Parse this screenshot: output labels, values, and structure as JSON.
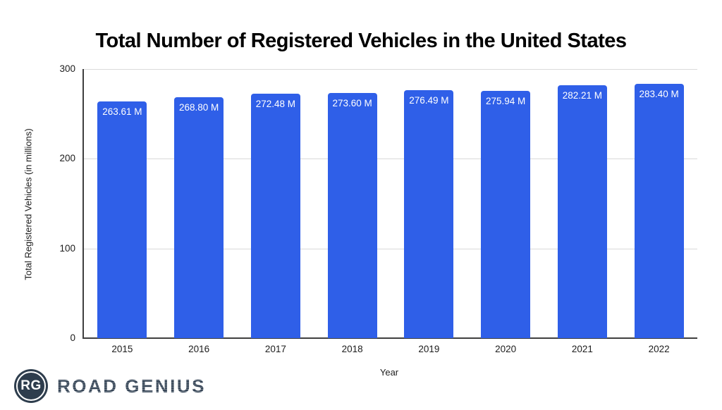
{
  "chart_data": {
    "type": "bar",
    "title": "Total Number of Registered Vehicles in the United States",
    "xlabel": "Year",
    "ylabel": "Total Registered Vehicles (in millions)",
    "categories": [
      "2015",
      "2016",
      "2017",
      "2018",
      "2019",
      "2020",
      "2021",
      "2022"
    ],
    "values": [
      263.61,
      268.8,
      272.48,
      273.6,
      276.49,
      275.94,
      282.21,
      283.4
    ],
    "value_labels": [
      "263.61 M",
      "268.80 M",
      "272.48 M",
      "273.60 M",
      "276.49 M",
      "275.94 M",
      "282.21 M",
      "283.40 M"
    ],
    "ylim": [
      0,
      300
    ],
    "yticks": [
      0,
      100,
      200,
      300
    ],
    "grid": "horizontal",
    "legend": "none",
    "bar_color": "#2f5fe8",
    "bar_label_color": "#ffffff"
  },
  "logo": {
    "badge_text": "RG",
    "brand_name": "ROAD GENIUS",
    "badge_color": "#2e3d4d",
    "text_color": "#3e4d60"
  }
}
